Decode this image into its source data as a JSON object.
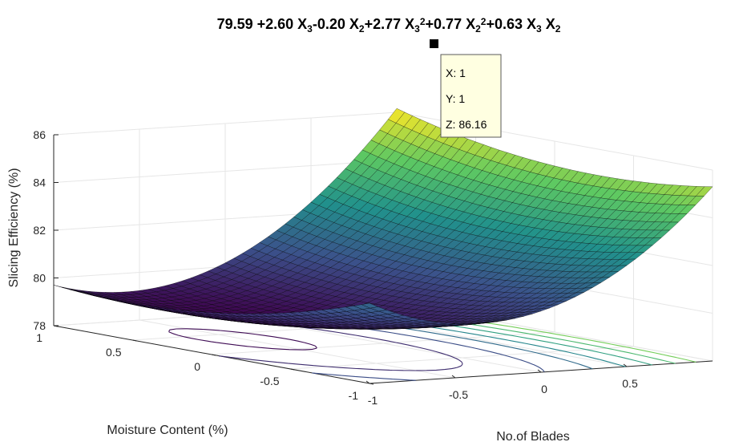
{
  "chart_data": {
    "type": "surface",
    "title": {
      "parts": [
        {
          "t": "79.59 +2.60  X"
        },
        {
          "t": "3",
          "sub": true
        },
        {
          "t": "-0.20  X"
        },
        {
          "t": "2",
          "sub": true
        },
        {
          "t": "+2.77  X"
        },
        {
          "t": "3",
          "sub": true
        },
        {
          "t": "2",
          "sup": true
        },
        {
          "t": "+0.77  X"
        },
        {
          "t": "2",
          "sub": true
        },
        {
          "t": "2",
          "sup": true
        },
        {
          "t": "+0.63  X"
        },
        {
          "t": "3",
          "sub": true
        },
        {
          "t": "  X"
        },
        {
          "t": "2",
          "sub": true
        }
      ]
    },
    "xlabel": "No.of Blades",
    "ylabel": "Moisture Content (%)",
    "zlabel": "Slicing Efficiency (%)",
    "xlim": [
      -1,
      1
    ],
    "ylim": [
      -1,
      1
    ],
    "zlim": [
      78,
      86
    ],
    "x_ticks": [
      "-1",
      "-0.5",
      "0",
      "0.5"
    ],
    "y_ticks": [
      "-1",
      "-0.5",
      "0",
      "0.5",
      "1"
    ],
    "z_ticks": [
      "78",
      "80",
      "82",
      "84",
      "86"
    ],
    "coefficients": {
      "const": 79.59,
      "x": 2.6,
      "y": -0.2,
      "xx": 2.77,
      "yy": 0.77,
      "xy": 0.63
    },
    "colormap": [
      "#3e0751",
      "#3b528b",
      "#21918c",
      "#5ec962",
      "#fde725"
    ],
    "grid": true,
    "datatip": {
      "x": "X: 1",
      "y": "Y: 1",
      "z": "Z: 86.16"
    }
  }
}
